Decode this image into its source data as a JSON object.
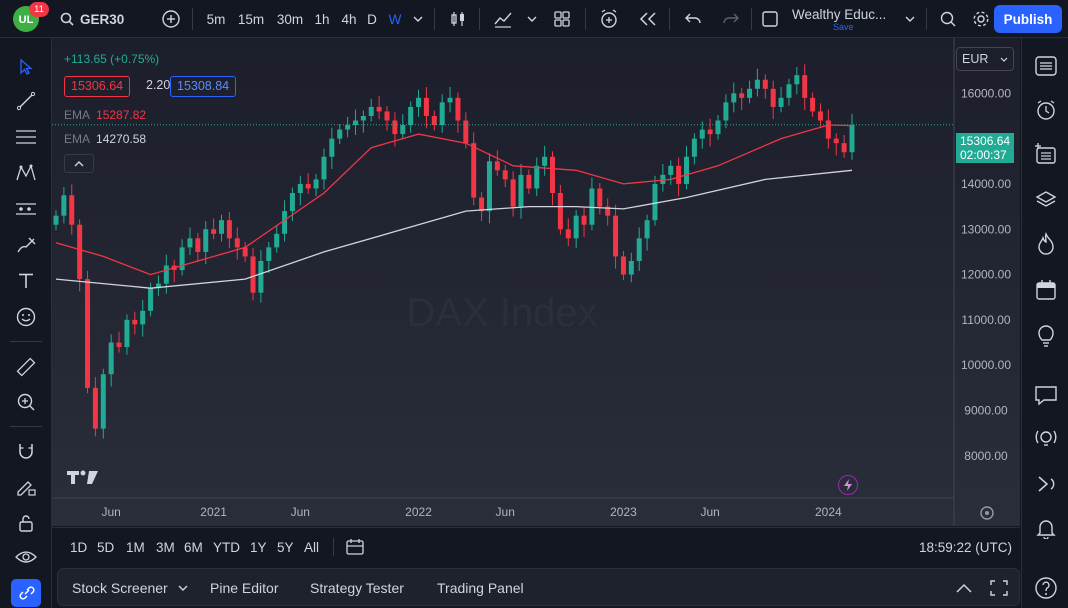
{
  "header": {
    "notification_count": "11",
    "symbol": "GER30",
    "timeframes": [
      "5m",
      "15m",
      "30m",
      "1h",
      "4h",
      "D",
      "W"
    ],
    "active_timeframe": "W",
    "layout_name": "Wealthy Educ...",
    "layout_status": "Save",
    "publish_label": "Publish"
  },
  "legend": {
    "change": "+113.65 (+0.75%)",
    "bid": "15306.64",
    "spread": "2.20",
    "ask": "15308.84",
    "ema1_label": "EMA",
    "ema1_value": "15287.82",
    "ema2_label": "EMA",
    "ema2_value": "14270.58"
  },
  "watermark": "DAX Index",
  "currency": "EUR",
  "last_price": {
    "price": "15306.64",
    "countdown": "02:00:37"
  },
  "range_bar": {
    "ranges": [
      "1D",
      "5D",
      "1M",
      "3M",
      "6M",
      "YTD",
      "1Y",
      "5Y",
      "All"
    ],
    "clock": "18:59:22 (UTC)"
  },
  "bottom_bar": {
    "tabs": [
      "Stock Screener",
      "Pine Editor",
      "Strategy Tester",
      "Trading Panel"
    ]
  },
  "colors": {
    "up": "#22ab94",
    "down": "#f23645",
    "ema_fast": "#f23645",
    "ema_slow": "#d1d4dc",
    "accent": "#2962ff",
    "background": "#131722"
  },
  "chart_data": {
    "type": "candlestick",
    "y_ticks": [
      "16000.00",
      "15000.00",
      "14000.00",
      "13000.00",
      "12000.00",
      "11000.00",
      "10000.00",
      "9000.00",
      "8000.00"
    ],
    "y_tick_values": [
      16000,
      15000,
      14000,
      13000,
      12000,
      11000,
      10000,
      9000,
      8000
    ],
    "ylim": [
      7400,
      17000
    ],
    "x_ticks": [
      "Jun",
      "2021",
      "Jun",
      "2022",
      "Jun",
      "2023",
      "Jun",
      "2024"
    ],
    "x_tick_positions": [
      14,
      40,
      62,
      92,
      114,
      144,
      166,
      196
    ],
    "close_path": [
      [
        0,
        13300
      ],
      [
        1,
        13750
      ],
      [
        2,
        13100
      ],
      [
        3,
        11900
      ],
      [
        4,
        9500
      ],
      [
        5,
        8600
      ],
      [
        6,
        9800
      ],
      [
        7,
        10500
      ],
      [
        8,
        10400
      ],
      [
        9,
        11000
      ],
      [
        10,
        10900
      ],
      [
        11,
        11200
      ],
      [
        12,
        11700
      ],
      [
        13,
        11800
      ],
      [
        14,
        12200
      ],
      [
        15,
        12100
      ],
      [
        16,
        12600
      ],
      [
        17,
        12800
      ],
      [
        18,
        12500
      ],
      [
        19,
        13000
      ],
      [
        20,
        12900
      ],
      [
        21,
        13200
      ],
      [
        22,
        12800
      ],
      [
        23,
        12600
      ],
      [
        24,
        12400
      ],
      [
        25,
        11600
      ],
      [
        26,
        12300
      ],
      [
        27,
        12600
      ],
      [
        28,
        12900
      ],
      [
        29,
        13400
      ],
      [
        30,
        13800
      ],
      [
        31,
        14000
      ],
      [
        32,
        13900
      ],
      [
        33,
        14100
      ],
      [
        34,
        14600
      ],
      [
        35,
        15000
      ],
      [
        36,
        15200
      ],
      [
        37,
        15300
      ],
      [
        38,
        15400
      ],
      [
        39,
        15500
      ],
      [
        40,
        15700
      ],
      [
        41,
        15600
      ],
      [
        42,
        15400
      ],
      [
        43,
        15100
      ],
      [
        44,
        15300
      ],
      [
        45,
        15700
      ],
      [
        46,
        15900
      ],
      [
        47,
        15500
      ],
      [
        48,
        15300
      ],
      [
        49,
        15800
      ],
      [
        50,
        15900
      ],
      [
        51,
        15400
      ],
      [
        52,
        14900
      ],
      [
        53,
        13700
      ],
      [
        54,
        13400
      ],
      [
        55,
        14500
      ],
      [
        56,
        14300
      ],
      [
        57,
        14100
      ],
      [
        58,
        13500
      ],
      [
        59,
        14200
      ],
      [
        60,
        13900
      ],
      [
        61,
        14400
      ],
      [
        62,
        14600
      ],
      [
        63,
        13800
      ],
      [
        64,
        13000
      ],
      [
        65,
        12800
      ],
      [
        66,
        13300
      ],
      [
        67,
        13100
      ],
      [
        68,
        13900
      ],
      [
        69,
        13500
      ],
      [
        70,
        13300
      ],
      [
        71,
        12400
      ],
      [
        72,
        12000
      ],
      [
        73,
        12300
      ],
      [
        74,
        12800
      ],
      [
        75,
        13200
      ],
      [
        76,
        14000
      ],
      [
        77,
        14200
      ],
      [
        78,
        14400
      ],
      [
        79,
        14000
      ],
      [
        80,
        14600
      ],
      [
        81,
        15000
      ],
      [
        82,
        15200
      ],
      [
        83,
        15100
      ],
      [
        84,
        15400
      ],
      [
        85,
        15800
      ],
      [
        86,
        16000
      ],
      [
        87,
        15900
      ],
      [
        88,
        16100
      ],
      [
        89,
        16300
      ],
      [
        90,
        16100
      ],
      [
        91,
        15700
      ],
      [
        92,
        15900
      ],
      [
        93,
        16200
      ],
      [
        94,
        16400
      ],
      [
        95,
        15900
      ],
      [
        96,
        15600
      ],
      [
        97,
        15400
      ],
      [
        98,
        15000
      ],
      [
        99,
        14900
      ],
      [
        100,
        14700
      ],
      [
        101,
        15306
      ]
    ],
    "ema_fast": [
      [
        0,
        12700
      ],
      [
        6,
        12400
      ],
      [
        12,
        12000
      ],
      [
        24,
        12600
      ],
      [
        34,
        13800
      ],
      [
        40,
        14800
      ],
      [
        46,
        15100
      ],
      [
        52,
        14900
      ],
      [
        58,
        14400
      ],
      [
        66,
        14300
      ],
      [
        72,
        14000
      ],
      [
        78,
        14100
      ],
      [
        84,
        14400
      ],
      [
        92,
        15000
      ],
      [
        98,
        15300
      ],
      [
        101,
        15288
      ]
    ],
    "ema_slow": [
      [
        0,
        11900
      ],
      [
        6,
        11800
      ],
      [
        12,
        11700
      ],
      [
        24,
        11900
      ],
      [
        34,
        12500
      ],
      [
        44,
        13000
      ],
      [
        52,
        13400
      ],
      [
        60,
        13500
      ],
      [
        66,
        13500
      ],
      [
        72,
        13450
      ],
      [
        80,
        13700
      ],
      [
        90,
        14100
      ],
      [
        101,
        14300
      ]
    ]
  }
}
